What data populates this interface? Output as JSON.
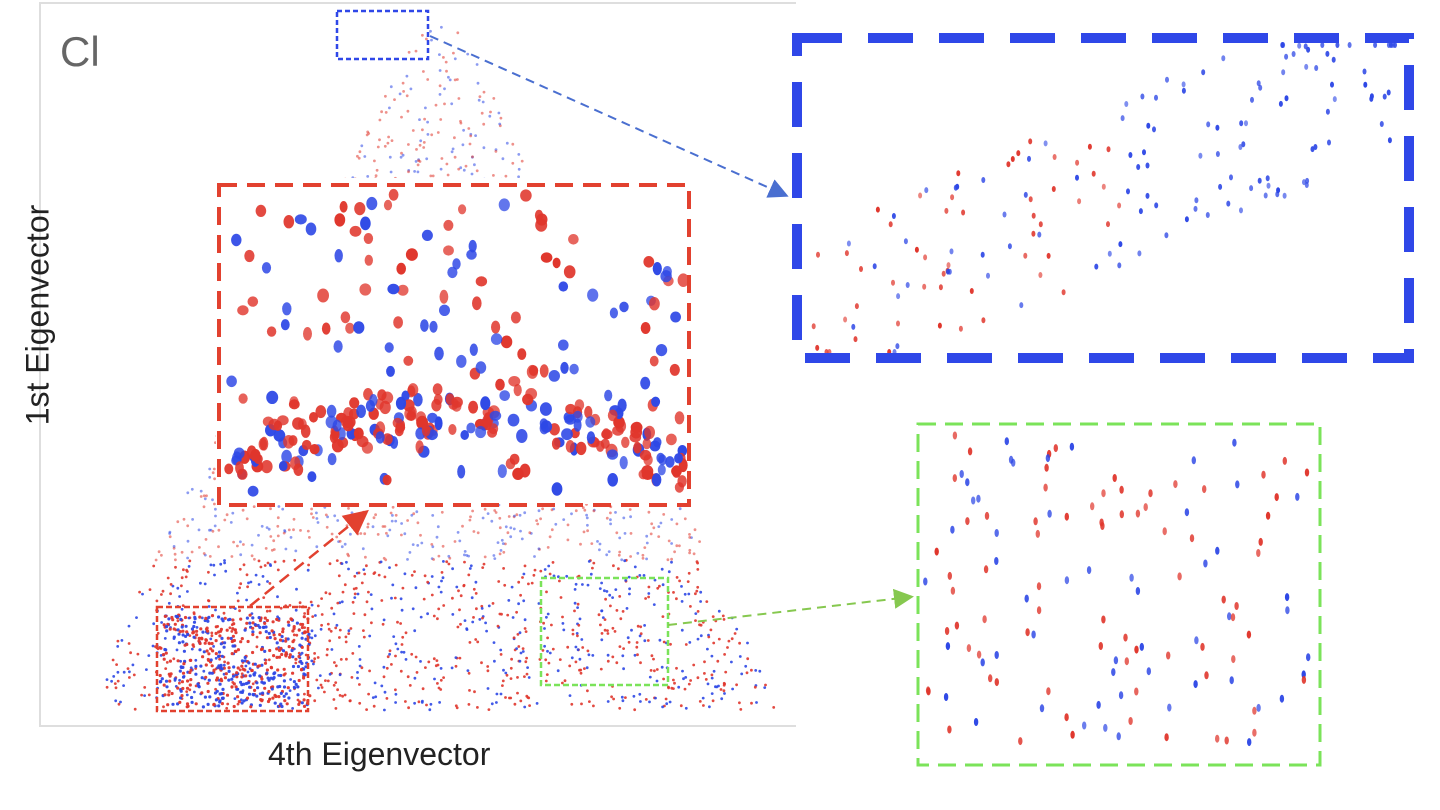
{
  "panel_label": "Cl",
  "colors": {
    "red": "#e0362c",
    "blue": "#2e48e6",
    "blue_box": "#2f47e8",
    "red_box": "#e2412f",
    "green_box": "#7be35a",
    "axis_frame": "#dedede"
  },
  "chart_data": {
    "type": "scatter",
    "title": "",
    "panel_label": "Cl",
    "xlabel": "4th Eigenvector",
    "ylabel": "1st Eigenvector",
    "grid": false,
    "legend": "none",
    "series_colors": [
      "red",
      "blue"
    ],
    "insets": [
      {
        "name": "blue-zoom",
        "color": "blue",
        "source": "top apex of the point cloud",
        "type": "scatter"
      },
      {
        "name": "red-zoom",
        "color": "red",
        "source": "bottom-left cluster",
        "type": "scatter"
      },
      {
        "name": "green-zoom",
        "color": "green",
        "source": "bottom-right cluster",
        "type": "scatter"
      }
    ]
  }
}
